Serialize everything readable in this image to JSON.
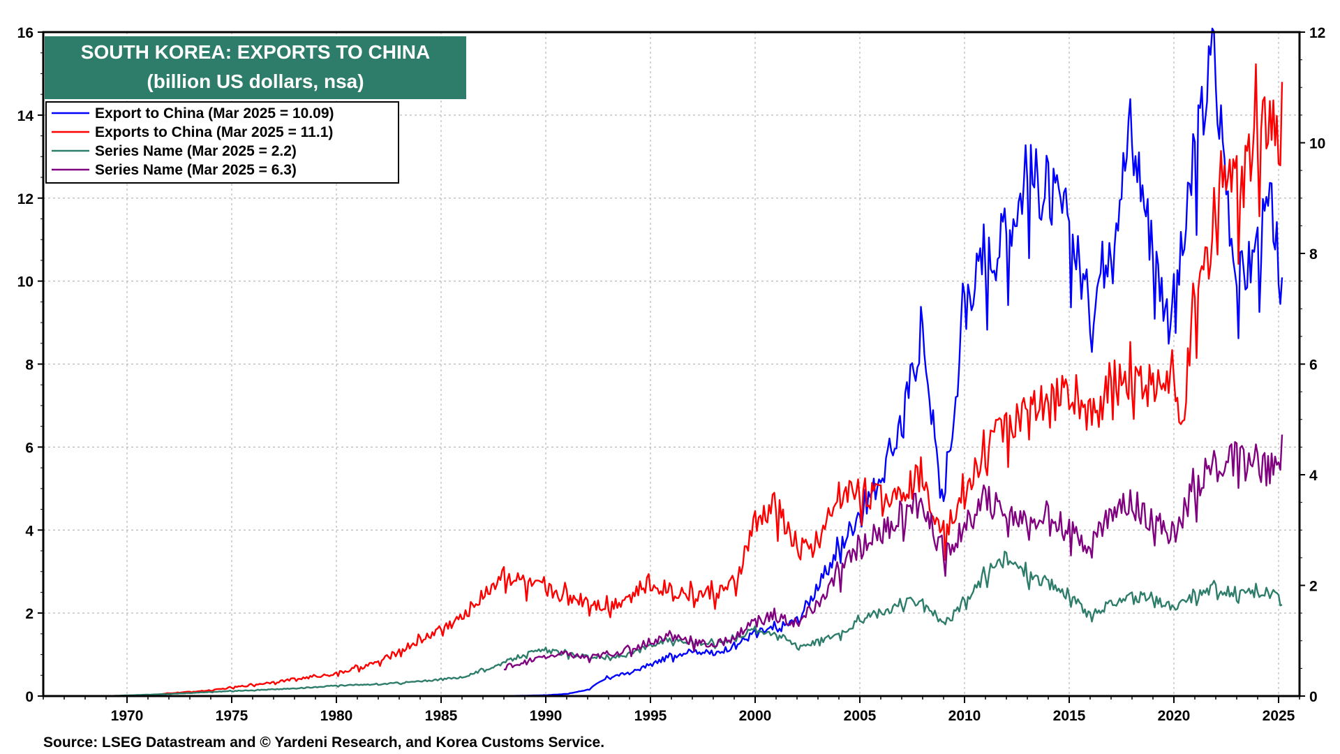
{
  "chart_data": {
    "type": "line",
    "title": "SOUTH KOREA: EXPORTS TO CHINA",
    "subtitle": "(billion US dollars, nsa)",
    "source": "Source: LSEG Datastream and © Yardeni Research, and Korea Customs Service.",
    "x_ticks": [
      "1970",
      "1975",
      "1980",
      "1985",
      "1990",
      "1995",
      "2000",
      "2005",
      "2010",
      "2015",
      "2020",
      "2025"
    ],
    "x_range": [
      1966.0,
      2026.0
    ],
    "y_left": {
      "ticks": [
        "0",
        "2",
        "4",
        "6",
        "8",
        "10",
        "12",
        "14",
        "16"
      ],
      "range": [
        0,
        16
      ]
    },
    "y_right": {
      "ticks": [
        "0",
        "2",
        "4",
        "6",
        "8",
        "10",
        "12"
      ],
      "range": [
        0,
        12
      ]
    },
    "grid": true,
    "legend_position": "top-left",
    "colors": {
      "title_bg": "#2e7d6b",
      "frame": "#000000",
      "grid": "#b8b8b8"
    },
    "series": [
      {
        "name": "Export to China (Mar 2025 = 10.09)",
        "color": "#0000ff",
        "axis": "left",
        "points": [
          [
            1988.0,
            0.0
          ],
          [
            1990.0,
            0.02
          ],
          [
            1991.0,
            0.05
          ],
          [
            1992.0,
            0.15
          ],
          [
            1993.0,
            0.45
          ],
          [
            1994.0,
            0.55
          ],
          [
            1995.0,
            0.75
          ],
          [
            1996.0,
            0.95
          ],
          [
            1997.0,
            1.1
          ],
          [
            1998.0,
            1.0
          ],
          [
            1999.0,
            1.2
          ],
          [
            2000.0,
            1.5
          ],
          [
            2001.0,
            1.6
          ],
          [
            2002.0,
            1.8
          ],
          [
            2003.0,
            2.6
          ],
          [
            2004.0,
            3.5
          ],
          [
            2005.0,
            4.4
          ],
          [
            2006.0,
            5.2
          ],
          [
            2007.0,
            6.5
          ],
          [
            2008.0,
            8.8
          ],
          [
            2008.9,
            4.6
          ],
          [
            2009.5,
            6.6
          ],
          [
            2010.0,
            9.6
          ],
          [
            2011.0,
            10.3
          ],
          [
            2012.0,
            11.0
          ],
          [
            2013.0,
            12.4
          ],
          [
            2014.0,
            12.0
          ],
          [
            2015.0,
            11.2
          ],
          [
            2016.0,
            9.2
          ],
          [
            2017.0,
            11.0
          ],
          [
            2018.0,
            13.5
          ],
          [
            2019.0,
            10.6
          ],
          [
            2019.8,
            8.9
          ],
          [
            2020.5,
            10.8
          ],
          [
            2021.0,
            12.8
          ],
          [
            2021.9,
            15.4
          ],
          [
            2022.5,
            12.3
          ],
          [
            2023.0,
            9.8
          ],
          [
            2023.8,
            10.4
          ],
          [
            2024.5,
            11.5
          ],
          [
            2024.8,
            11.4
          ],
          [
            2025.0,
            9.2
          ],
          [
            2025.2,
            10.09
          ]
        ]
      },
      {
        "name": "Exports to China (Mar 2025 = 11.1)",
        "color": "#ff0000",
        "axis": "right",
        "points": [
          [
            1971.0,
            0.0
          ],
          [
            1972.0,
            0.05
          ],
          [
            1974.0,
            0.1
          ],
          [
            1976.0,
            0.2
          ],
          [
            1978.0,
            0.3
          ],
          [
            1980.0,
            0.4
          ],
          [
            1982.0,
            0.6
          ],
          [
            1984.0,
            1.0
          ],
          [
            1986.0,
            1.4
          ],
          [
            1987.0,
            1.8
          ],
          [
            1988.0,
            2.2
          ],
          [
            1989.0,
            2.0
          ],
          [
            1990.0,
            1.9
          ],
          [
            1991.0,
            1.8
          ],
          [
            1992.0,
            1.7
          ],
          [
            1993.0,
            1.6
          ],
          [
            1994.0,
            1.8
          ],
          [
            1995.0,
            2.0
          ],
          [
            1996.0,
            1.9
          ],
          [
            1997.0,
            1.8
          ],
          [
            1998.0,
            1.85
          ],
          [
            1999.0,
            1.95
          ],
          [
            2000.0,
            3.1
          ],
          [
            2001.0,
            3.4
          ],
          [
            2002.0,
            2.6
          ],
          [
            2003.0,
            2.7
          ],
          [
            2004.0,
            3.6
          ],
          [
            2005.0,
            3.7
          ],
          [
            2006.0,
            3.5
          ],
          [
            2007.0,
            3.7
          ],
          [
            2008.0,
            3.9
          ],
          [
            2009.0,
            2.9
          ],
          [
            2010.0,
            3.6
          ],
          [
            2011.0,
            4.4
          ],
          [
            2012.0,
            4.9
          ],
          [
            2013.0,
            5.0
          ],
          [
            2014.0,
            5.2
          ],
          [
            2015.0,
            5.5
          ],
          [
            2016.0,
            5.0
          ],
          [
            2017.0,
            5.5
          ],
          [
            2018.0,
            5.8
          ],
          [
            2019.0,
            5.5
          ],
          [
            2020.0,
            5.7
          ],
          [
            2020.3,
            4.6
          ],
          [
            2021.0,
            6.8
          ],
          [
            2022.0,
            8.6
          ],
          [
            2022.5,
            9.8
          ],
          [
            2023.0,
            9.0
          ],
          [
            2024.0,
            10.3
          ],
          [
            2024.5,
            10.6
          ],
          [
            2025.0,
            9.3
          ],
          [
            2025.2,
            11.1
          ]
        ]
      },
      {
        "name": "Series Name (Mar 2025 = 2.2)",
        "color": "#2e7d6b",
        "axis": "left",
        "points": [
          [
            1969.0,
            0.0
          ],
          [
            1972.0,
            0.05
          ],
          [
            1975.0,
            0.12
          ],
          [
            1978.0,
            0.18
          ],
          [
            1980.0,
            0.25
          ],
          [
            1982.0,
            0.28
          ],
          [
            1984.0,
            0.35
          ],
          [
            1986.0,
            0.45
          ],
          [
            1987.5,
            0.7
          ],
          [
            1989.0,
            1.0
          ],
          [
            1990.0,
            1.1
          ],
          [
            1991.0,
            1.0
          ],
          [
            1992.0,
            0.95
          ],
          [
            1993.0,
            0.9
          ],
          [
            1994.0,
            1.0
          ],
          [
            1995.0,
            1.2
          ],
          [
            1996.0,
            1.35
          ],
          [
            1997.0,
            1.3
          ],
          [
            1998.0,
            1.25
          ],
          [
            1999.0,
            1.4
          ],
          [
            2000.0,
            1.6
          ],
          [
            2001.0,
            1.5
          ],
          [
            2002.0,
            1.2
          ],
          [
            2003.0,
            1.3
          ],
          [
            2004.0,
            1.5
          ],
          [
            2005.0,
            1.8
          ],
          [
            2006.0,
            2.0
          ],
          [
            2007.0,
            2.2
          ],
          [
            2008.0,
            2.3
          ],
          [
            2009.0,
            1.7
          ],
          [
            2010.0,
            2.2
          ],
          [
            2011.0,
            2.9
          ],
          [
            2012.0,
            3.3
          ],
          [
            2013.0,
            2.9
          ],
          [
            2014.0,
            2.7
          ],
          [
            2015.0,
            2.4
          ],
          [
            2016.0,
            1.9
          ],
          [
            2017.0,
            2.2
          ],
          [
            2018.0,
            2.4
          ],
          [
            2019.0,
            2.3
          ],
          [
            2020.0,
            2.1
          ],
          [
            2021.0,
            2.4
          ],
          [
            2022.0,
            2.6
          ],
          [
            2023.0,
            2.4
          ],
          [
            2024.0,
            2.5
          ],
          [
            2025.0,
            2.4
          ],
          [
            2025.2,
            2.2
          ]
        ]
      },
      {
        "name": "Series Name (Mar 2025 = 6.3)",
        "color": "#800080",
        "axis": "left",
        "points": [
          [
            1988.0,
            0.7
          ],
          [
            1989.0,
            0.8
          ],
          [
            1990.0,
            0.95
          ],
          [
            1991.0,
            1.0
          ],
          [
            1992.0,
            0.9
          ],
          [
            1993.0,
            1.0
          ],
          [
            1994.0,
            1.1
          ],
          [
            1995.0,
            1.3
          ],
          [
            1996.0,
            1.45
          ],
          [
            1997.0,
            1.3
          ],
          [
            1998.0,
            1.2
          ],
          [
            1999.0,
            1.4
          ],
          [
            2000.0,
            1.8
          ],
          [
            2001.0,
            1.9
          ],
          [
            2002.0,
            1.7
          ],
          [
            2003.0,
            2.2
          ],
          [
            2004.0,
            2.9
          ],
          [
            2005.0,
            3.6
          ],
          [
            2006.0,
            3.9
          ],
          [
            2007.0,
            4.3
          ],
          [
            2008.0,
            4.6
          ],
          [
            2009.0,
            3.3
          ],
          [
            2010.0,
            4.0
          ],
          [
            2011.0,
            4.7
          ],
          [
            2012.0,
            4.3
          ],
          [
            2013.0,
            4.2
          ],
          [
            2014.0,
            4.3
          ],
          [
            2015.0,
            3.9
          ],
          [
            2016.0,
            3.6
          ],
          [
            2017.0,
            4.4
          ],
          [
            2018.0,
            4.6
          ],
          [
            2019.0,
            4.2
          ],
          [
            2020.0,
            3.8
          ],
          [
            2021.0,
            5.0
          ],
          [
            2022.0,
            5.5
          ],
          [
            2023.0,
            5.6
          ],
          [
            2024.0,
            5.5
          ],
          [
            2025.0,
            5.3
          ],
          [
            2025.2,
            6.3
          ]
        ]
      }
    ]
  }
}
